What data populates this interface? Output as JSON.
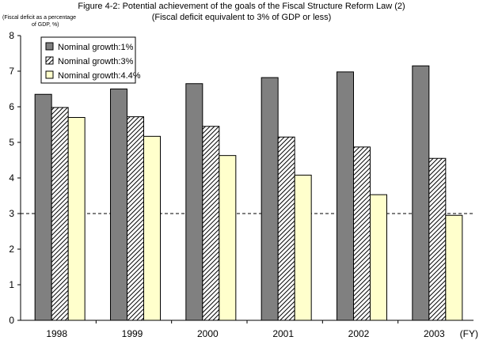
{
  "header": {
    "title": "Figure 4-2: Potential achievement of the goals of the Fiscal Structure Reform Law (2)",
    "subtitle": "(Fiscal deficit equivalent to 3% of GDP or less)",
    "unit_line1": "(Fiscal deficit as a percentage",
    "unit_line2": "of GDP, %)"
  },
  "chart_data": {
    "type": "bar",
    "title": "Figure 4-2: Potential achievement of the goals of the Fiscal Structure Reform Law (2)",
    "subtitle": "(Fiscal deficit equivalent to 3% of GDP or less)",
    "ylabel": "(Fiscal deficit as a percentage of GDP, %)",
    "xlabel": "(FY)",
    "categories": [
      "1998",
      "1999",
      "2000",
      "2001",
      "2002",
      "2003"
    ],
    "series": [
      {
        "name": "Nominal growth:1%",
        "values": [
          6.35,
          6.5,
          6.65,
          6.82,
          6.98,
          7.15
        ],
        "color": "#808080",
        "pattern": "solid"
      },
      {
        "name": "Nominal growth:3%",
        "values": [
          5.98,
          5.72,
          5.45,
          5.15,
          4.87,
          4.55
        ],
        "color": "#ffffff",
        "pattern": "diagonal-hatch"
      },
      {
        "name": "Nominal growth:4.4%",
        "values": [
          5.7,
          5.17,
          4.63,
          4.08,
          3.53,
          2.95
        ],
        "color": "#ffffcc",
        "pattern": "solid"
      }
    ],
    "ylim": [
      0,
      8
    ],
    "yticks": [
      0,
      1,
      2,
      3,
      4,
      5,
      6,
      7,
      8
    ],
    "reference_line": {
      "y": 3,
      "style": "dashed"
    },
    "grid": false,
    "legend": "top-left"
  }
}
